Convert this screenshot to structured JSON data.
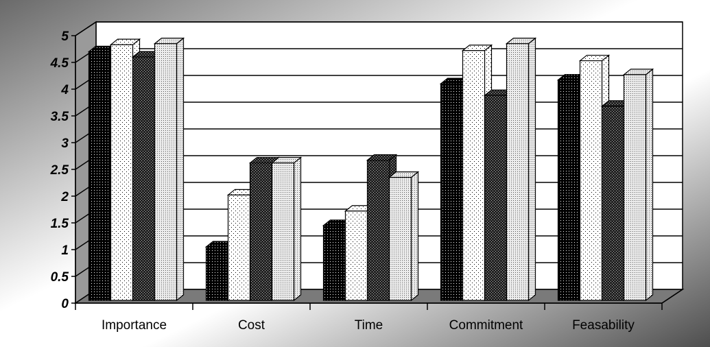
{
  "chart_data": {
    "type": "bar",
    "style": "3d-clustered-column",
    "categories": [
      "Importance",
      "Cost",
      "Time",
      "Commitment",
      "Feasability"
    ],
    "series": [
      {
        "values": [
          4.65,
          1.0,
          1.4,
          4.05,
          4.12
        ],
        "pattern": "dense-dots-black"
      },
      {
        "values": [
          4.78,
          1.97,
          1.67,
          4.67,
          4.48
        ],
        "pattern": "sparse-dots-white"
      },
      {
        "values": [
          4.55,
          2.57,
          2.62,
          3.83,
          3.63
        ],
        "pattern": "dots-dark"
      },
      {
        "values": [
          4.8,
          2.57,
          2.3,
          4.8,
          4.22
        ],
        "pattern": "dense-dots-light"
      }
    ],
    "y_ticks": [
      "0",
      "0.5",
      "1",
      "1.5",
      "2",
      "2.5",
      "3",
      "3.5",
      "4",
      "4.5",
      "5"
    ],
    "ylim": [
      0,
      5
    ],
    "grid": true,
    "legend": "none",
    "title": "",
    "xlabel": "",
    "ylabel": ""
  },
  "colors": {
    "background_light": "#ffffff",
    "background_dark": "#5a5a5a",
    "plot_wall": "#ffffff",
    "floor": "#7a7a7a",
    "gridline": "#000000"
  }
}
